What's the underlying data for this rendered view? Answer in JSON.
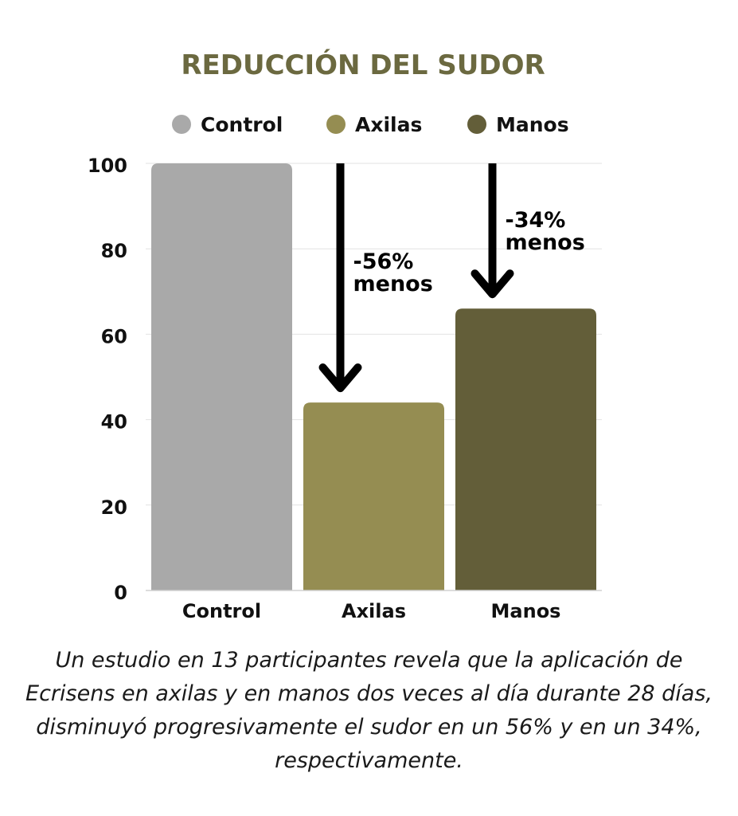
{
  "chart_data": {
    "type": "bar",
    "title": "REDUCCIÓN DEL SUDOR",
    "categories": [
      "Control",
      "Axilas",
      "Manos"
    ],
    "values": [
      100,
      44,
      66
    ],
    "colors": [
      "#a9a9a9",
      "#958d52",
      "#635e39"
    ],
    "legend": {
      "placement": "top",
      "entries": [
        "Control",
        "Axilas",
        "Manos"
      ]
    },
    "ylim": [
      0,
      100
    ],
    "yticks": [
      0,
      20,
      40,
      60,
      80,
      100
    ],
    "grid": true,
    "xlabel": "",
    "ylabel": "",
    "annotations": [
      {
        "category": "Axilas",
        "line1": "-56%",
        "line2": "menos",
        "arrow": "down"
      },
      {
        "category": "Manos",
        "line1": "-34%",
        "line2": "menos",
        "arrow": "down"
      }
    ]
  },
  "caption": "Un estudio en 13 participantes revela que la aplicación de Ecrisens en axilas y en manos dos veces al día durante 28 días, disminuyó progresivamente el sudor en un 56% y en un 34%, respectivamente."
}
